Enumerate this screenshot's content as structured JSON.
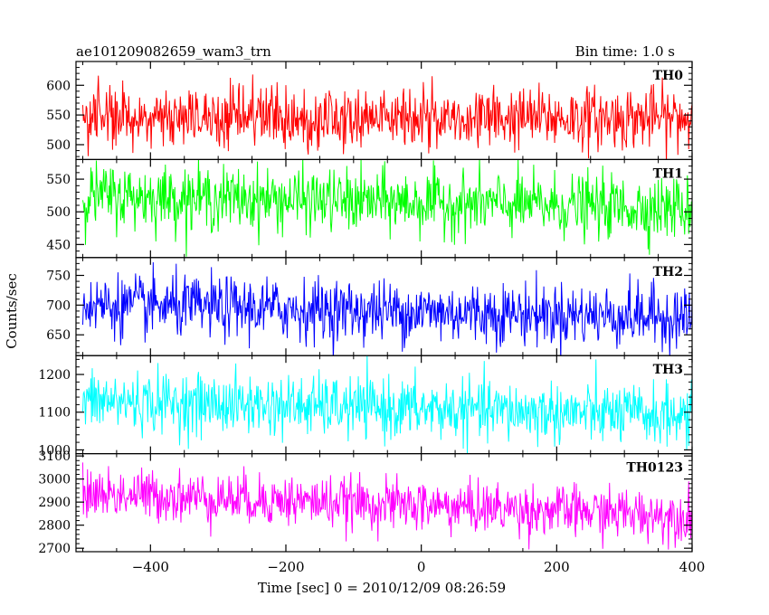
{
  "header": {
    "title": "ae101209082659_wam3_trn",
    "bin_time": "Bin time: 1.0 s"
  },
  "axes": {
    "xlabel": "Time [sec] 0 = 2010/12/09 08:26:59",
    "ylabel": "Counts/sec",
    "xlim": [
      -510,
      400
    ],
    "x_ticks": [
      -400,
      -200,
      0,
      200,
      400
    ],
    "x_tick_labels": [
      "−400",
      "−200",
      "0",
      "200",
      "400"
    ]
  },
  "chart_data": {
    "type": "line",
    "x_range": [
      -500,
      400
    ],
    "bin_seconds": 1.0,
    "panels": [
      {
        "name": "TH0",
        "color": "#ff0000",
        "ylim": [
          475,
          640
        ],
        "yticks": [
          500,
          550,
          600
        ],
        "ytick_labels": [
          "500",
          "550",
          "600"
        ],
        "mean": 545,
        "noise_sd": 26,
        "trend": [
          [
            -500,
            0
          ],
          [
            400,
            0
          ]
        ]
      },
      {
        "name": "TH1",
        "color": "#00ff00",
        "ylim": [
          430,
          580
        ],
        "yticks": [
          450,
          500,
          550
        ],
        "ytick_labels": [
          "450",
          "500",
          "550"
        ],
        "mean": 510,
        "noise_sd": 24,
        "trend": [
          [
            -500,
            15
          ],
          [
            400,
            -5
          ]
        ]
      },
      {
        "name": "TH2",
        "color": "#0000ff",
        "ylim": [
          615,
          780
        ],
        "yticks": [
          650,
          700,
          750
        ],
        "ytick_labels": [
          "650",
          "700",
          "750"
        ],
        "mean": 690,
        "noise_sd": 26,
        "trend": [
          [
            -500,
            10
          ],
          [
            400,
            -10
          ]
        ]
      },
      {
        "name": "TH3",
        "color": "#00ffff",
        "ylim": [
          990,
          1250
        ],
        "yticks": [
          1000,
          1100,
          1200
        ],
        "ytick_labels": [
          "1000",
          "1100",
          "1200"
        ],
        "mean": 1100,
        "noise_sd": 40,
        "trend": [
          [
            -500,
            30
          ],
          [
            400,
            -10
          ]
        ]
      },
      {
        "name": "TH0123",
        "color": "#ff00ff",
        "ylim": [
          2685,
          3110
        ],
        "yticks": [
          2700,
          2800,
          2900,
          3000,
          3100
        ],
        "ytick_labels": [
          "2700",
          "2800",
          "2900",
          "3000",
          "3100"
        ],
        "mean": 2860,
        "noise_sd": 55,
        "trend": [
          [
            -500,
            80
          ],
          [
            400,
            -20
          ]
        ]
      }
    ]
  }
}
